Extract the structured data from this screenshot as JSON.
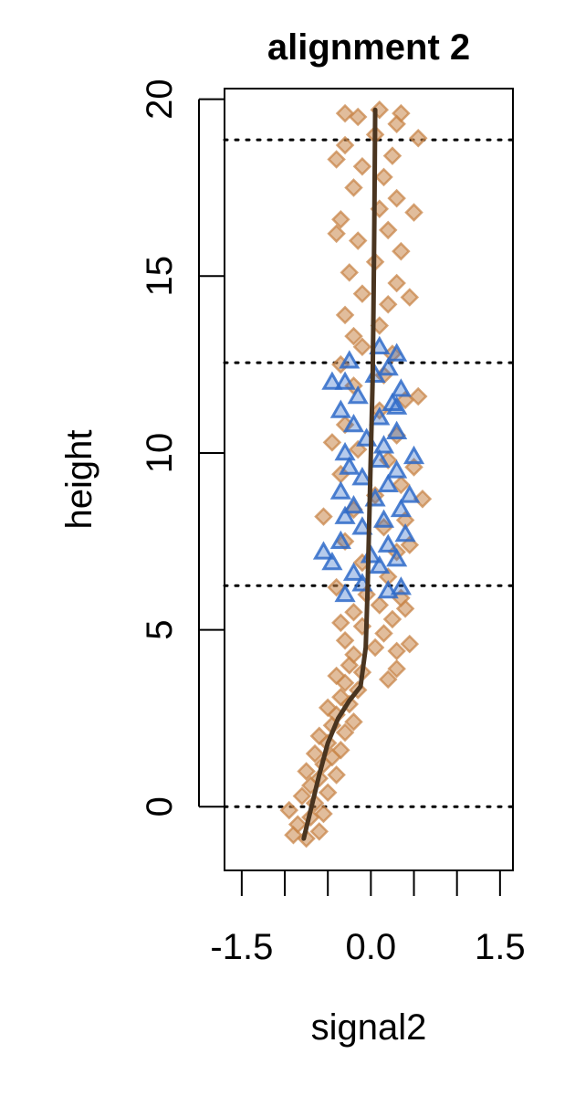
{
  "chart_data": {
    "type": "scatter",
    "title": "alignment 2",
    "xlabel": "signal2",
    "ylabel": "height",
    "xlim": [
      -1.7,
      1.65
    ],
    "ylim": [
      -1.8,
      20.3
    ],
    "x_ticks": [
      -1.5,
      -1.0,
      -0.5,
      0.0,
      0.5,
      1.0,
      1.5
    ],
    "x_tick_labels": [
      "-1.5",
      "0.0",
      "1.5"
    ],
    "x_tick_label_values": [
      -1.5,
      0.0,
      1.5
    ],
    "y_ticks": [
      0,
      5,
      10,
      15,
      20
    ],
    "y_tick_labels": [
      "0",
      "5",
      "10",
      "15",
      "20"
    ],
    "reference_lines_y": [
      0.0,
      6.25,
      12.55,
      18.85
    ],
    "grid": false,
    "legend": "none",
    "series": [
      {
        "marker": "diamond",
        "color": "#C8864A",
        "points": [
          [
            -0.75,
            -0.9
          ],
          [
            -0.9,
            -0.8
          ],
          [
            -0.6,
            -0.7
          ],
          [
            -0.85,
            -0.5
          ],
          [
            -0.7,
            -0.3
          ],
          [
            -0.55,
            -0.2
          ],
          [
            -0.95,
            -0.1
          ],
          [
            -0.65,
            0.1
          ],
          [
            -0.8,
            0.3
          ],
          [
            -0.5,
            0.4
          ],
          [
            -0.7,
            0.6
          ],
          [
            -0.6,
            0.8
          ],
          [
            -0.4,
            0.9
          ],
          [
            -0.75,
            1.0
          ],
          [
            -0.55,
            1.2
          ],
          [
            -0.45,
            1.4
          ],
          [
            -0.65,
            1.5
          ],
          [
            -0.35,
            1.6
          ],
          [
            -0.5,
            1.8
          ],
          [
            -0.6,
            2.0
          ],
          [
            -0.3,
            2.1
          ],
          [
            -0.45,
            2.3
          ],
          [
            -0.2,
            2.4
          ],
          [
            -0.4,
            2.6
          ],
          [
            -0.5,
            2.8
          ],
          [
            -0.25,
            2.9
          ],
          [
            -0.35,
            3.1
          ],
          [
            -0.15,
            3.3
          ],
          [
            -0.3,
            3.5
          ],
          [
            -0.4,
            3.7
          ],
          [
            -0.1,
            3.8
          ],
          [
            -0.25,
            4.0
          ],
          [
            0.2,
            3.6
          ],
          [
            0.3,
            3.9
          ],
          [
            -0.2,
            4.3
          ],
          [
            0.05,
            4.5
          ],
          [
            -0.3,
            4.7
          ],
          [
            0.15,
            4.9
          ],
          [
            -0.1,
            5.1
          ],
          [
            0.25,
            5.3
          ],
          [
            -0.2,
            5.5
          ],
          [
            0.1,
            5.7
          ],
          [
            0.35,
            5.9
          ],
          [
            -0.05,
            6.0
          ],
          [
            0.3,
            4.4
          ],
          [
            0.45,
            4.6
          ],
          [
            -0.35,
            5.2
          ],
          [
            0.4,
            5.6
          ],
          [
            -0.4,
            6.2
          ],
          [
            0.2,
            6.5
          ],
          [
            -0.1,
            6.9
          ],
          [
            0.3,
            7.2
          ],
          [
            -0.3,
            7.5
          ],
          [
            0.15,
            7.9
          ],
          [
            0.4,
            8.1
          ],
          [
            -0.2,
            8.4
          ],
          [
            0.05,
            8.8
          ],
          [
            0.35,
            9.1
          ],
          [
            -0.35,
            9.4
          ],
          [
            0.2,
            9.8
          ],
          [
            -0.15,
            10.1
          ],
          [
            0.3,
            10.5
          ],
          [
            -0.3,
            10.8
          ],
          [
            0.1,
            11.2
          ],
          [
            0.4,
            11.5
          ],
          [
            -0.2,
            11.9
          ],
          [
            0.15,
            12.2
          ],
          [
            -0.35,
            12.5
          ],
          [
            0.25,
            12.8
          ],
          [
            -0.1,
            13.0
          ],
          [
            0.5,
            9.6
          ],
          [
            0.6,
            8.7
          ],
          [
            -0.55,
            8.2
          ],
          [
            0.55,
            11.6
          ],
          [
            -0.45,
            10.3
          ],
          [
            0.45,
            7.4
          ],
          [
            -0.2,
            13.3
          ],
          [
            0.1,
            13.6
          ],
          [
            -0.3,
            13.9
          ],
          [
            0.2,
            14.2
          ],
          [
            -0.1,
            14.5
          ],
          [
            0.3,
            14.8
          ],
          [
            -0.25,
            15.1
          ],
          [
            0.05,
            15.4
          ],
          [
            0.35,
            15.7
          ],
          [
            -0.15,
            16.0
          ],
          [
            0.2,
            16.3
          ],
          [
            -0.35,
            16.6
          ],
          [
            0.1,
            16.9
          ],
          [
            0.3,
            17.2
          ],
          [
            -0.2,
            17.5
          ],
          [
            0.15,
            17.8
          ],
          [
            -0.1,
            18.1
          ],
          [
            0.25,
            18.4
          ],
          [
            -0.3,
            18.7
          ],
          [
            0.05,
            19.0
          ],
          [
            0.3,
            19.3
          ],
          [
            -0.15,
            19.5
          ],
          [
            0.1,
            19.7
          ],
          [
            -0.3,
            19.6
          ],
          [
            0.35,
            19.6
          ],
          [
            0.45,
            14.4
          ],
          [
            0.5,
            16.8
          ],
          [
            -0.4,
            16.2
          ],
          [
            0.55,
            18.9
          ],
          [
            -0.4,
            18.3
          ]
        ]
      },
      {
        "marker": "triangle",
        "color": "#2F6BC9",
        "points": [
          [
            -0.3,
            6.0
          ],
          [
            0.2,
            6.1
          ],
          [
            -0.1,
            6.3
          ],
          [
            0.35,
            6.2
          ],
          [
            -0.45,
            6.9
          ],
          [
            -0.2,
            6.6
          ],
          [
            0.1,
            6.8
          ],
          [
            0.3,
            7.0
          ],
          [
            -0.55,
            7.2
          ],
          [
            0.0,
            7.1
          ],
          [
            0.2,
            7.4
          ],
          [
            -0.35,
            7.5
          ],
          [
            0.4,
            7.7
          ],
          [
            -0.1,
            7.9
          ],
          [
            0.15,
            8.1
          ],
          [
            -0.3,
            8.2
          ],
          [
            0.35,
            8.4
          ],
          [
            -0.2,
            8.5
          ],
          [
            0.05,
            8.7
          ],
          [
            0.45,
            8.8
          ],
          [
            -0.35,
            8.9
          ],
          [
            0.2,
            9.1
          ],
          [
            -0.1,
            9.3
          ],
          [
            0.3,
            9.5
          ],
          [
            -0.25,
            9.6
          ],
          [
            0.1,
            9.8
          ],
          [
            0.5,
            9.9
          ],
          [
            -0.3,
            10.0
          ],
          [
            0.15,
            10.2
          ],
          [
            -0.05,
            10.4
          ],
          [
            0.3,
            10.6
          ],
          [
            -0.2,
            10.8
          ],
          [
            0.1,
            11.0
          ],
          [
            -0.35,
            11.2
          ],
          [
            0.25,
            11.4
          ],
          [
            -0.15,
            11.6
          ],
          [
            0.35,
            11.8
          ],
          [
            -0.3,
            12.0
          ],
          [
            0.05,
            12.2
          ],
          [
            0.2,
            12.4
          ],
          [
            -0.25,
            12.6
          ],
          [
            0.3,
            12.8
          ],
          [
            0.1,
            13.0
          ],
          [
            0.3,
            11.3
          ],
          [
            -0.45,
            12.0
          ]
        ]
      },
      {
        "type": "line",
        "color": "#4A3520",
        "x": [
          -0.78,
          -0.7,
          -0.6,
          -0.5,
          -0.38,
          -0.25,
          -0.12,
          -0.06,
          -0.04,
          -0.02,
          0.0,
          0.02,
          0.03,
          0.04,
          0.05
        ],
        "y": [
          -0.9,
          -0.1,
          0.9,
          1.8,
          2.5,
          3.0,
          3.4,
          4.5,
          6.0,
          8.0,
          10.0,
          12.0,
          14.0,
          16.5,
          19.7
        ]
      }
    ]
  }
}
